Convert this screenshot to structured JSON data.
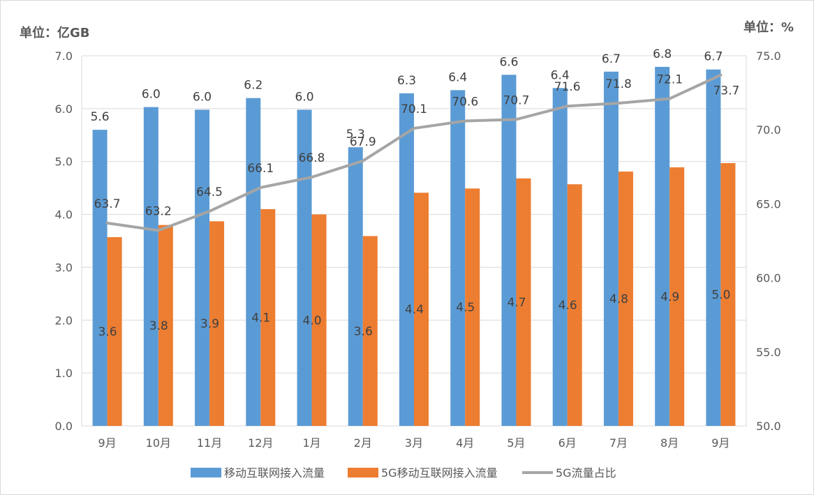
{
  "chart_data": {
    "type": "bar",
    "left_unit": "单位：亿GB",
    "right_unit": "单位：%",
    "categories": [
      "9月",
      "10月",
      "11月",
      "12月",
      "1月",
      "2月",
      "3月",
      "4月",
      "5月",
      "6月",
      "7月",
      "8月",
      "9月"
    ],
    "y_left": {
      "min": 0,
      "max": 7,
      "ticks": [
        0.0,
        1.0,
        2.0,
        3.0,
        4.0,
        5.0,
        6.0,
        7.0
      ],
      "tick_labels": [
        "0.0",
        "1.0",
        "2.0",
        "3.0",
        "4.0",
        "5.0",
        "6.0",
        "7.0"
      ]
    },
    "y_right": {
      "min": 50,
      "max": 75,
      "ticks": [
        50.0,
        55.0,
        60.0,
        65.0,
        70.0,
        75.0
      ],
      "tick_labels": [
        "50.0",
        "55.0",
        "60.0",
        "65.0",
        "70.0",
        "75.0"
      ]
    },
    "series": [
      {
        "name": "移动互联网接入流量",
        "type": "bar",
        "axis": "left",
        "color": "#5B9BD5",
        "values": [
          5.6,
          6.03,
          5.98,
          6.2,
          5.98,
          5.27,
          6.29,
          6.35,
          6.64,
          6.39,
          6.7,
          6.79,
          6.74
        ],
        "labels": [
          "5.6",
          "6.0",
          "6.0",
          "6.2",
          "6.0",
          "5.3",
          "6.3",
          "6.4",
          "6.6",
          "6.4",
          "6.7",
          "6.8",
          "6.7"
        ]
      },
      {
        "name": "5G移动互联网接入流量",
        "type": "bar",
        "axis": "left",
        "color": "#ED7D31",
        "values": [
          3.57,
          3.8,
          3.87,
          4.1,
          4.0,
          3.59,
          4.41,
          4.49,
          4.68,
          4.57,
          4.81,
          4.89,
          4.97
        ],
        "labels": [
          "3.6",
          "3.8",
          "3.9",
          "4.1",
          "4.0",
          "3.6",
          "4.4",
          "4.5",
          "4.7",
          "4.6",
          "4.8",
          "4.9",
          "5.0"
        ]
      },
      {
        "name": "5G流量占比",
        "type": "line",
        "axis": "right",
        "color": "#A5A5A5",
        "values": [
          63.7,
          63.2,
          64.5,
          66.1,
          66.8,
          67.9,
          70.1,
          70.6,
          70.7,
          71.6,
          71.8,
          72.1,
          73.7
        ],
        "labels": [
          "63.7",
          "63.2",
          "64.5",
          "66.1",
          "66.8",
          "67.9",
          "70.1",
          "70.6",
          "70.7",
          "71.6",
          "71.8",
          "72.1",
          "73.7"
        ]
      }
    ],
    "grid": true,
    "legend_position": "bottom"
  },
  "colors": {
    "gridline": "#D9D9D9",
    "axis_text": "#595959",
    "label_text": "#404040"
  }
}
